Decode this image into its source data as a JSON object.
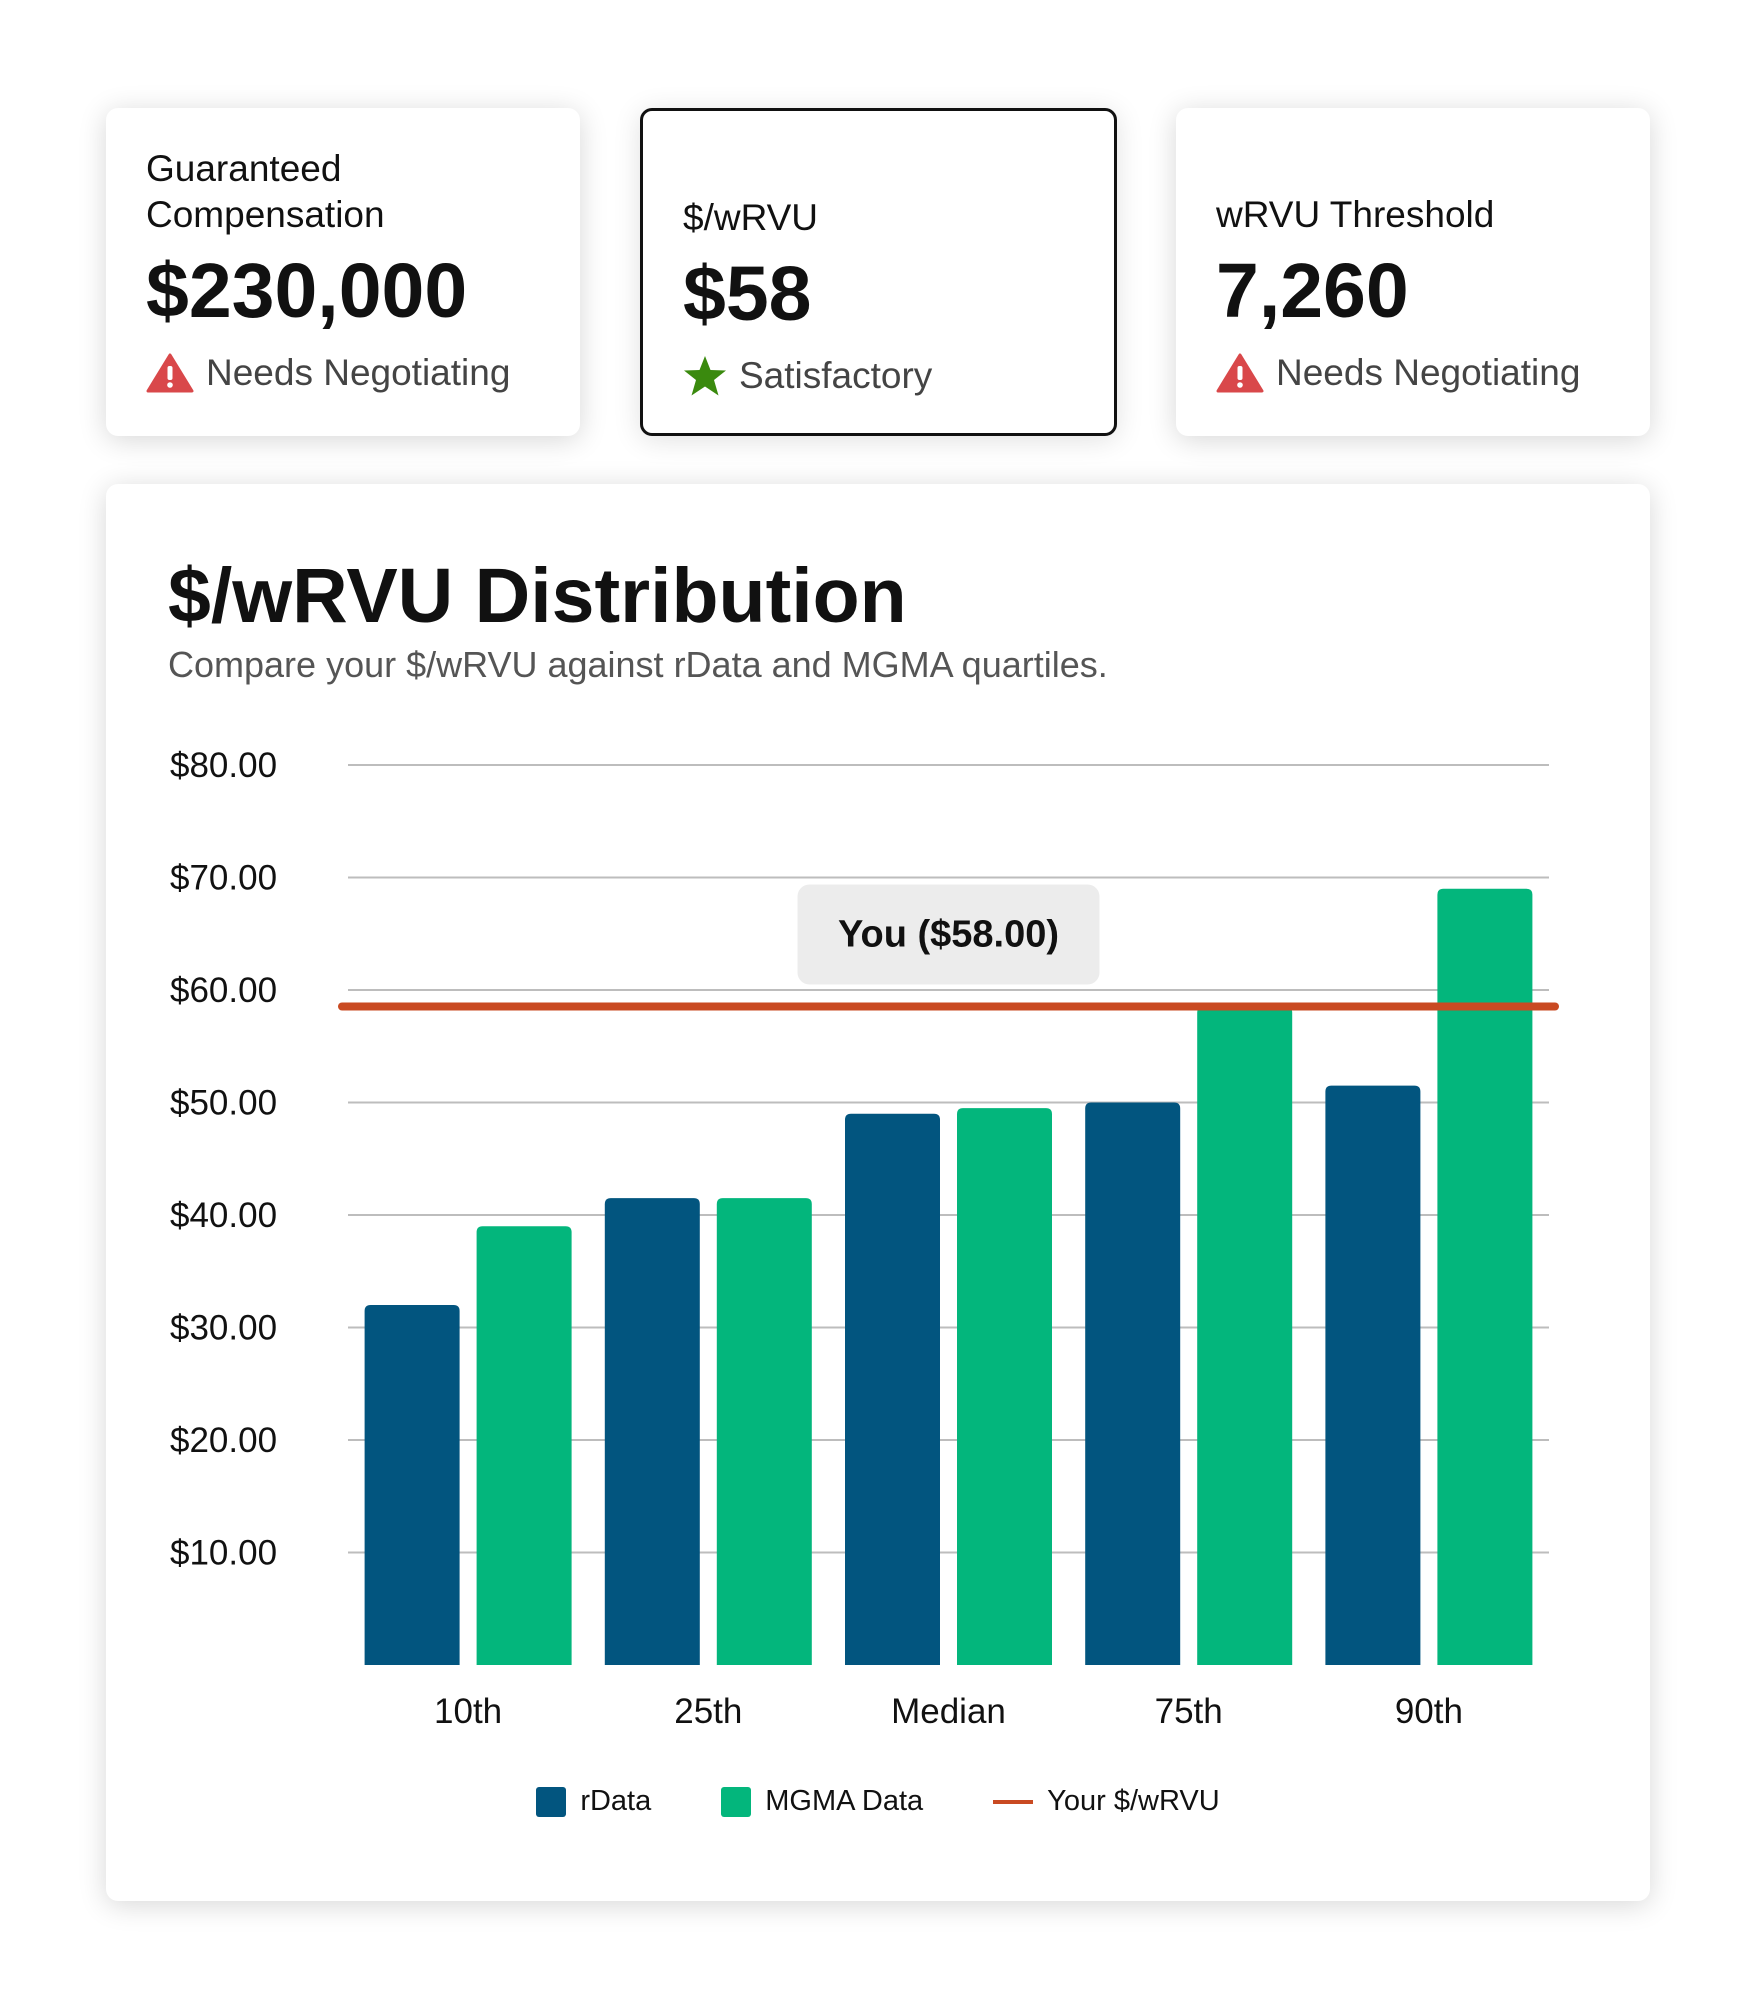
{
  "kpis": [
    {
      "label": "Guaranteed Compensation",
      "value": "$230,000",
      "status": "Needs Negotiating",
      "status_icon": "warning-triangle-icon",
      "status_color": "#d9484a"
    },
    {
      "label": "$/wRVU",
      "value": "$58",
      "status": "Satisfactory",
      "status_icon": "star-icon",
      "status_color": "#3a8a0e"
    },
    {
      "label": "wRVU Threshold",
      "value": "7,260",
      "status": "Needs Negotiating",
      "status_icon": "warning-triangle-icon",
      "status_color": "#d9484a"
    }
  ],
  "chart_data": {
    "type": "bar",
    "title": "$/wRVU Distribution",
    "subtitle": "Compare your $/wRVU against rData and MGMA quartiles.",
    "categories": [
      "10th",
      "25th",
      "Median",
      "75th",
      "90th"
    ],
    "series": [
      {
        "name": "rData",
        "color": "#02557f",
        "values": [
          32,
          41.5,
          49,
          50,
          51.5
        ]
      },
      {
        "name": "MGMA Data",
        "color": "#03b67c",
        "values": [
          39,
          41.5,
          49.5,
          58.5,
          69
        ]
      }
    ],
    "reference_line": {
      "name": "Your $/wRVU",
      "value": 58,
      "label": "You ($58.00)",
      "color": "#c94a22"
    },
    "yticks": [
      "$10.00",
      "$20.00",
      "$30.00",
      "$40.00",
      "$50.00",
      "$60.00",
      "$70.00",
      "$80.00"
    ],
    "ylim": [
      0,
      80
    ],
    "grid": true,
    "legend": "bottom"
  }
}
